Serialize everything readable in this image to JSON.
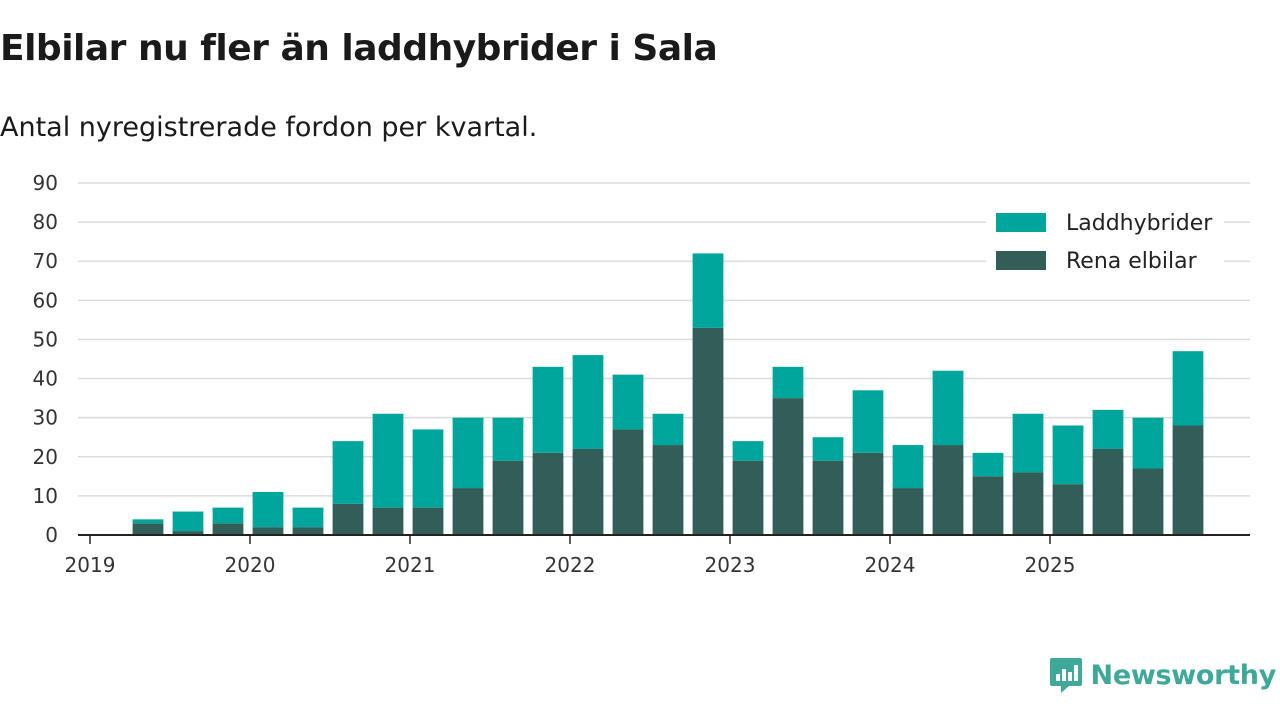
{
  "chart_data": {
    "type": "bar",
    "stacked": true,
    "title": "Elbilar nu fler än laddhybrider i Sala",
    "subtitle": "Antal nyregistrerade fordon per kvartal.",
    "xlabel": "",
    "ylabel": "",
    "ylim": [
      0,
      90
    ],
    "yticks": [
      0,
      10,
      20,
      30,
      40,
      50,
      60,
      70,
      80,
      90
    ],
    "xtick_labels": [
      "2019",
      "2020",
      "2021",
      "2022",
      "2023",
      "2024",
      "2025"
    ],
    "categories": [
      "2019 Q1",
      "2019 Q2",
      "2019 Q3",
      "2019 Q4",
      "2020 Q1",
      "2020 Q2",
      "2020 Q3",
      "2020 Q4",
      "2021 Q1",
      "2021 Q2",
      "2021 Q3",
      "2021 Q4",
      "2022 Q1",
      "2022 Q2",
      "2022 Q3",
      "2022 Q4",
      "2023 Q1",
      "2023 Q2",
      "2023 Q3",
      "2023 Q4",
      "2024 Q1",
      "2024 Q2",
      "2024 Q3",
      "2024 Q4",
      "2025 Q1",
      "2025 Q2",
      "2025 Q3",
      "2025 Q4"
    ],
    "series": [
      {
        "name": "Rena elbilar",
        "color": "#335e57",
        "values": [
          0,
          3,
          1,
          3,
          2,
          2,
          8,
          7,
          7,
          12,
          19,
          21,
          22,
          27,
          23,
          53,
          19,
          35,
          19,
          21,
          12,
          23,
          15,
          16,
          13,
          22,
          17,
          28
        ]
      },
      {
        "name": "Laddhybrider",
        "color": "#00a69c",
        "values": [
          0,
          1,
          5,
          4,
          9,
          5,
          16,
          24,
          20,
          18,
          11,
          22,
          24,
          14,
          8,
          19,
          5,
          8,
          6,
          16,
          11,
          19,
          6,
          15,
          15,
          10,
          13,
          19
        ]
      }
    ],
    "legend": {
      "position": "top-right",
      "order": [
        "Laddhybrider",
        "Rena elbilar"
      ]
    },
    "grid": true
  },
  "brand": {
    "name": "Newsworthy",
    "color": "#3fa89a"
  }
}
